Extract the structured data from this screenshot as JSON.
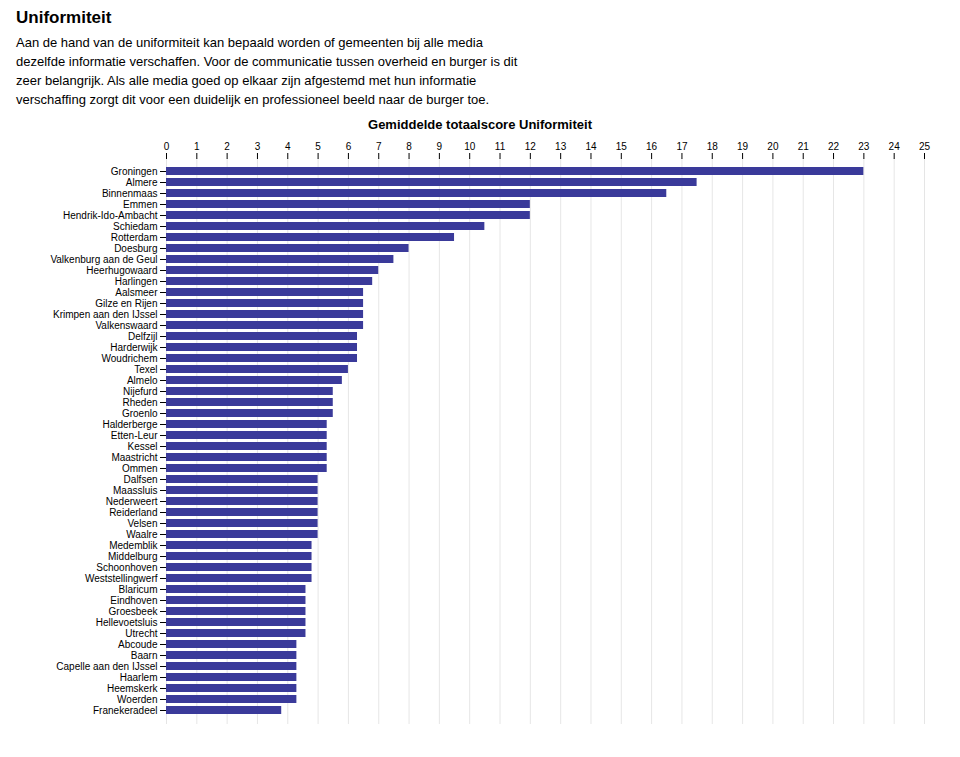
{
  "title": "Uniformiteit",
  "subtitle": "Aan de hand van de uniformiteit kan bepaald worden of gemeenten bij alle media\ndezelfde informatie verschaffen. Voor de communicatie tussen overheid en burger is dit\nzeer belangrijk. Als alle media goed op elkaar zijn afgestemd met hun informatie\nverschaffing zorgt dit voor een duidelijk en professioneel beeld naar de burger toe.",
  "chart_data": {
    "type": "bar",
    "orientation": "horizontal",
    "title": "Gemiddelde totaalscore Uniformiteit",
    "categories": [
      "Groningen",
      "Almere",
      "Binnenmaas",
      "Emmen",
      "Hendrik-Ido-Ambacht",
      "Schiedam",
      "Rotterdam",
      "Doesburg",
      "Valkenburg aan de Geul",
      "Heerhugowaard",
      "Harlingen",
      "Aalsmeer",
      "Gilze en Rijen",
      "Krimpen aan den IJssel",
      "Valkenswaard",
      "Delfzijl",
      "Harderwijk",
      "Woudrichem",
      "Texel",
      "Almelo",
      "Nijefurd",
      "Rheden",
      "Groenlo",
      "Halderberge",
      "Etten-Leur",
      "Kessel",
      "Maastricht",
      "Ommen",
      "Dalfsen",
      "Maassluis",
      "Nederweert",
      "Reiderland",
      "Velsen",
      "Waalre",
      "Medemblik",
      "Middelburg",
      "Schoonhoven",
      "Weststellingwerf",
      "Blaricum",
      "Eindhoven",
      "Groesbeek",
      "Hellevoetsluis",
      "Utrecht",
      "Abcoude",
      "Baarn",
      "Capelle aan den IJssel",
      "Haarlem",
      "Heemskerk",
      "Woerden",
      "Franekeradeel"
    ],
    "values": [
      23.0,
      17.5,
      16.5,
      12.0,
      12.0,
      10.5,
      9.5,
      8.0,
      7.5,
      7.0,
      6.8,
      6.5,
      6.5,
      6.5,
      6.5,
      6.3,
      6.3,
      6.3,
      6.0,
      5.8,
      5.5,
      5.5,
      5.5,
      5.3,
      5.3,
      5.3,
      5.3,
      5.3,
      5.0,
      5.0,
      5.0,
      5.0,
      5.0,
      5.0,
      4.8,
      4.8,
      4.8,
      4.8,
      4.6,
      4.6,
      4.6,
      4.6,
      4.6,
      4.3,
      4.3,
      4.3,
      4.3,
      4.3,
      4.3,
      3.8
    ],
    "color": "#3a3a9a",
    "xlim": [
      0,
      25
    ],
    "xticks": [
      0,
      1,
      2,
      3,
      4,
      5,
      6,
      7,
      8,
      9,
      10,
      11,
      12,
      13,
      14,
      15,
      16,
      17,
      18,
      19,
      20,
      21,
      22,
      23,
      24,
      25
    ],
    "grid": true
  }
}
